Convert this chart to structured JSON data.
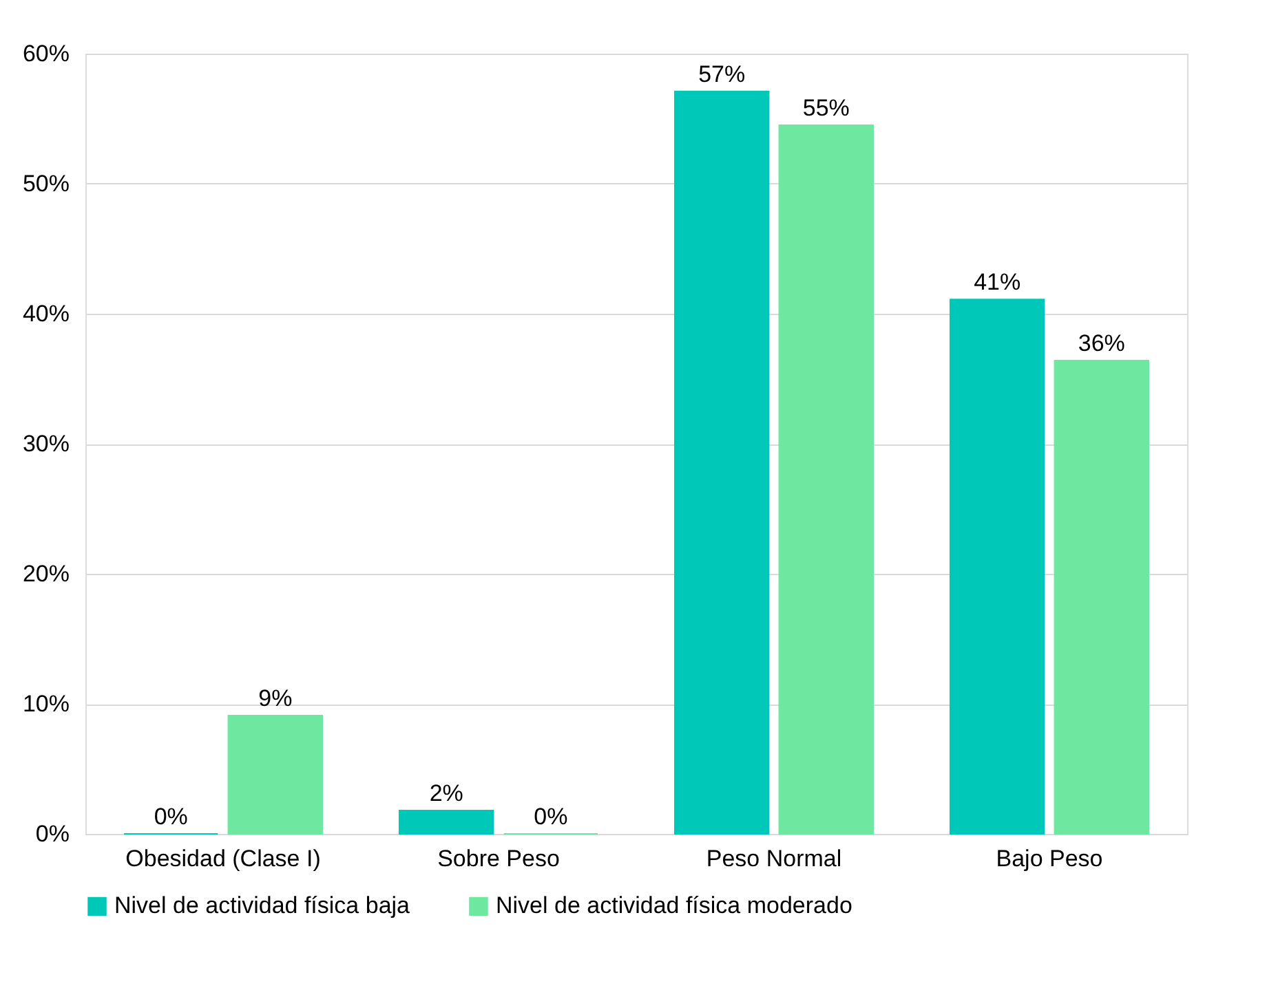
{
  "chart_data": {
    "type": "bar",
    "categories": [
      "Obesidad (Clase I)",
      "Sobre Peso",
      "Peso Normal",
      "Bajo Peso"
    ],
    "series": [
      {
        "name": "Nivel de actividad física baja",
        "color": "#00c8b8",
        "values": [
          0,
          1.8,
          57.1,
          41.1
        ],
        "value_labels": [
          "0%",
          "2%",
          "57%",
          "41%"
        ]
      },
      {
        "name": "Nivel de actividad física moderado",
        "color": "#6ee8a0",
        "values": [
          9.1,
          0,
          54.5,
          36.4
        ],
        "value_labels": [
          "9%",
          "0%",
          "55%",
          "36%"
        ]
      }
    ],
    "ylim": [
      0,
      60
    ],
    "yticks": [
      {
        "value": 0,
        "label": "0%"
      },
      {
        "value": 10,
        "label": "10%"
      },
      {
        "value": 20,
        "label": "20%"
      },
      {
        "value": 30,
        "label": "30%"
      },
      {
        "value": 40,
        "label": "40%"
      },
      {
        "value": 50,
        "label": "50%"
      },
      {
        "value": 60,
        "label": "60%"
      }
    ],
    "grid": "y",
    "legend": "bottom"
  }
}
